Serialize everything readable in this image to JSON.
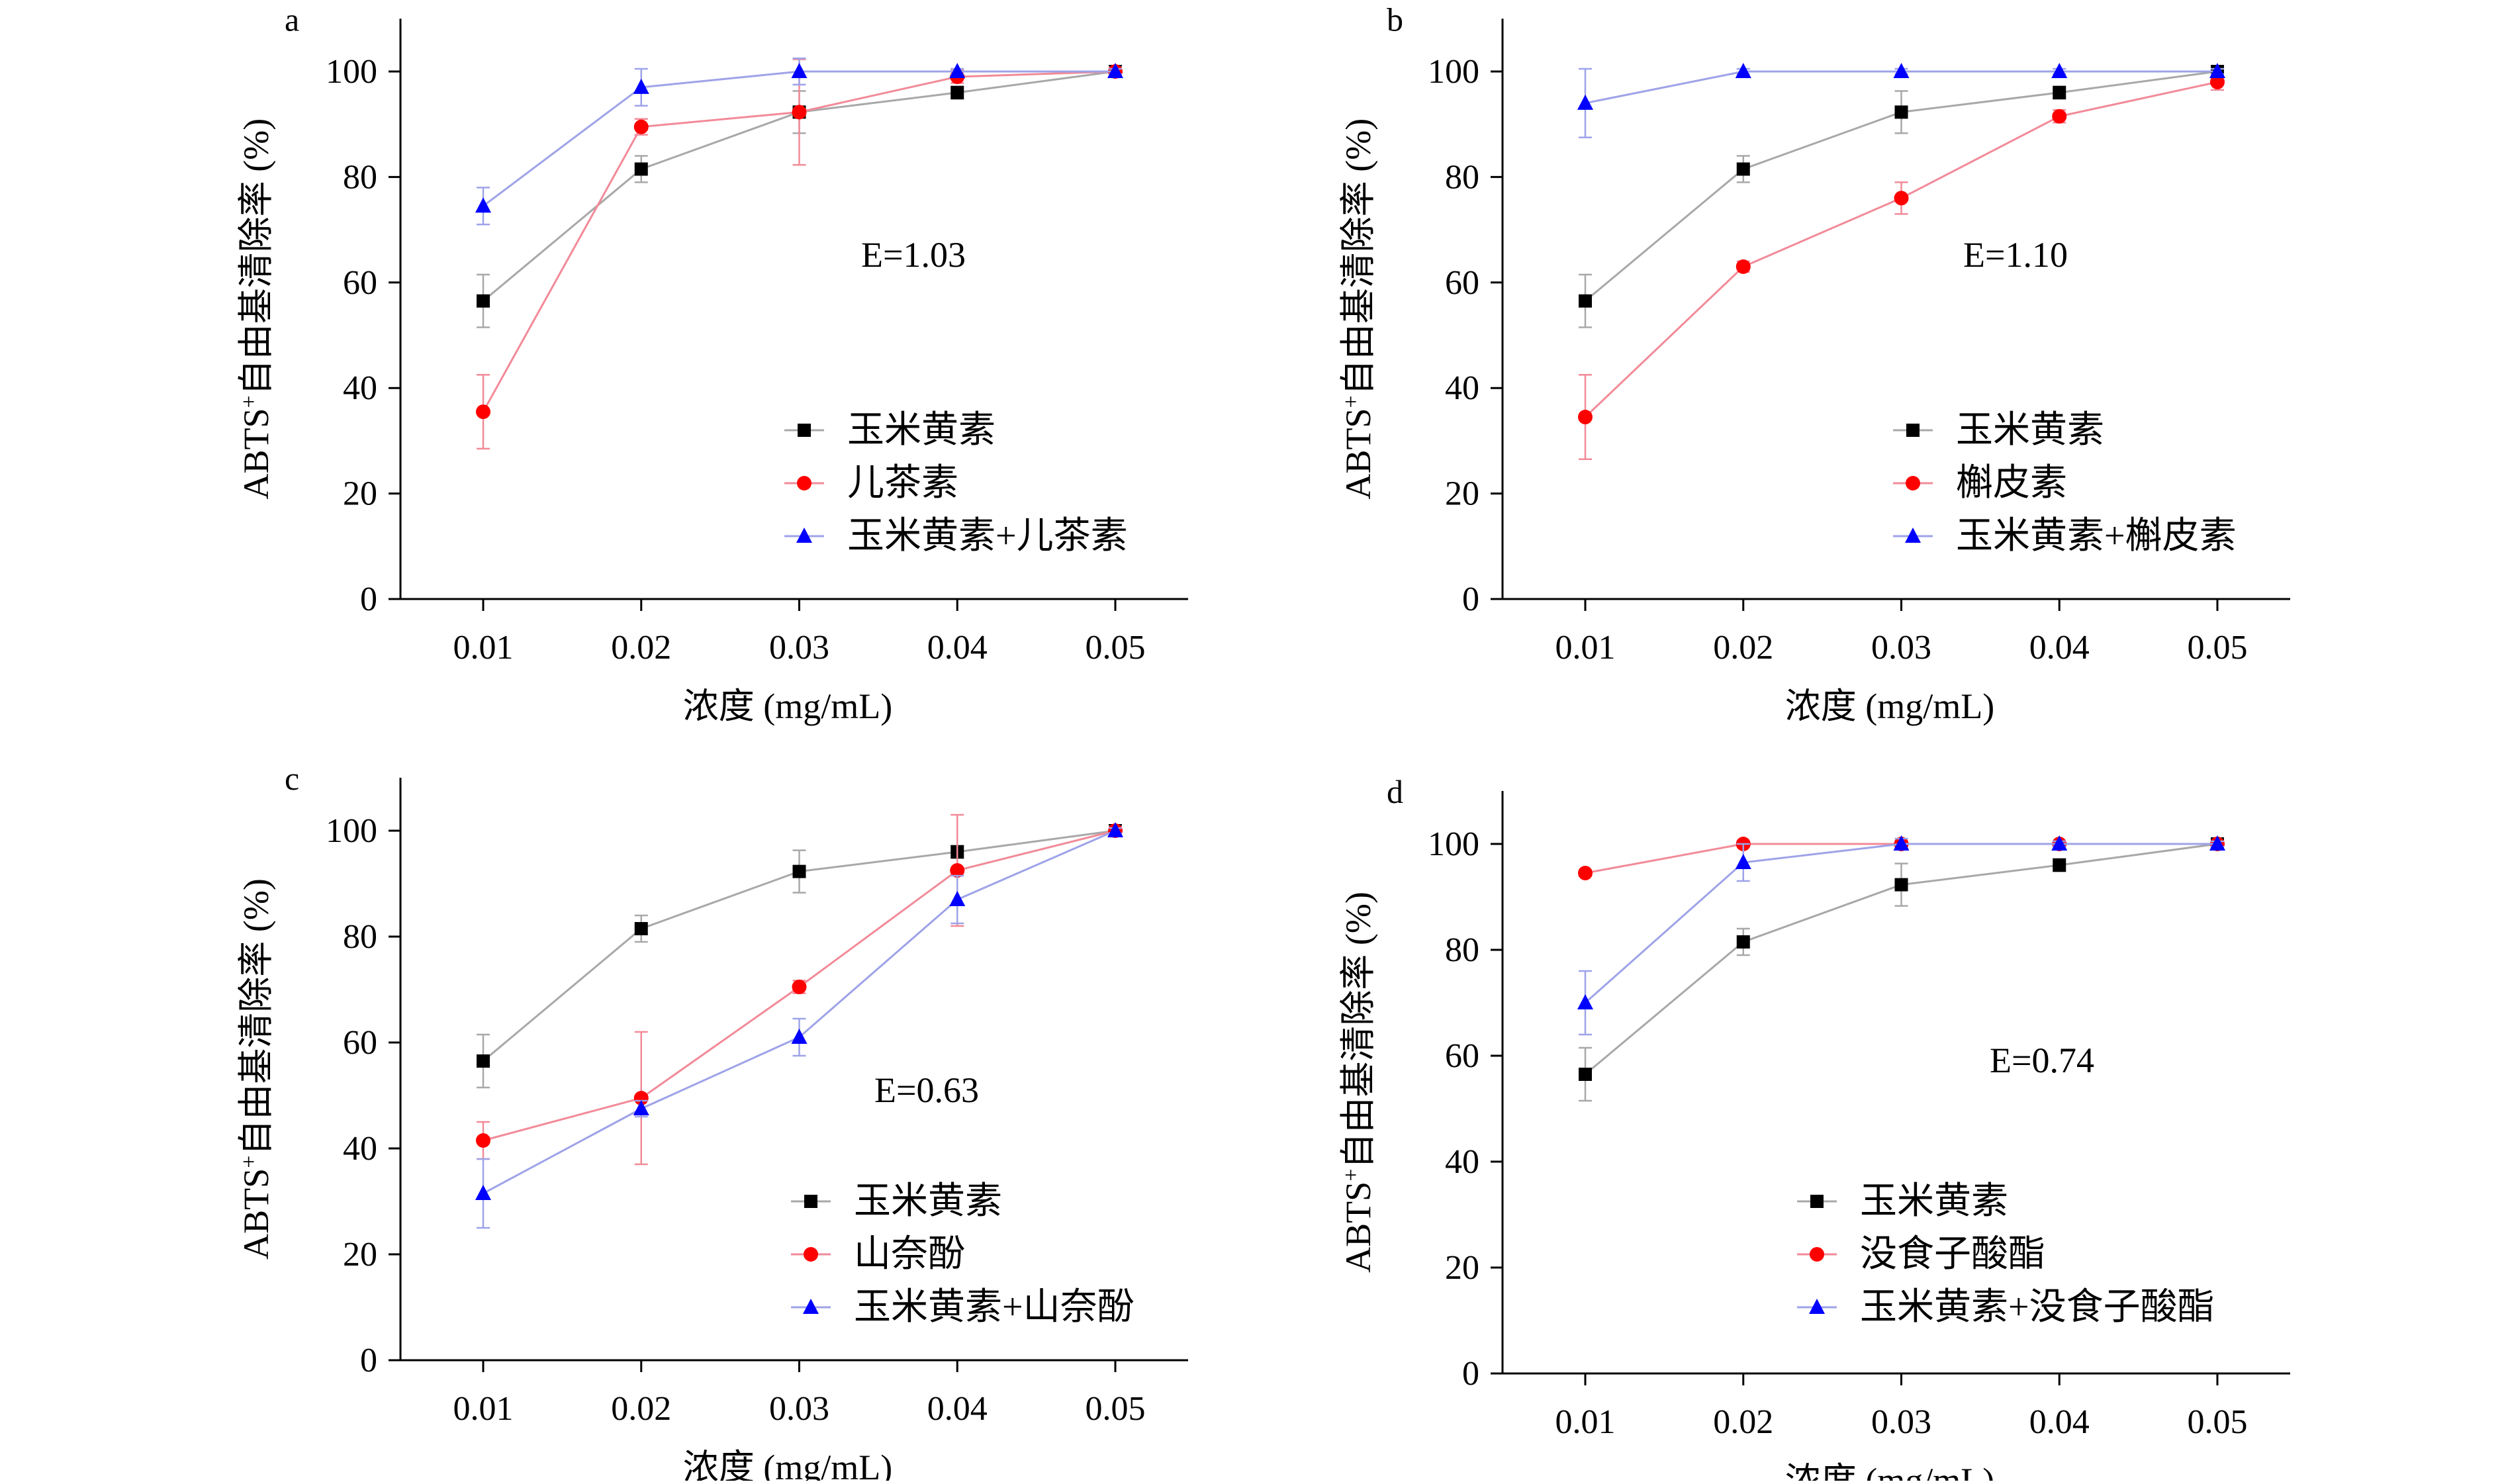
{
  "chart_data": [
    {
      "type": "line",
      "panel_label": "a",
      "x": [
        "0.01",
        "0.02",
        "0.03",
        "0.04",
        "0.05"
      ],
      "xlabel": "浓度 (mg/mL)",
      "ylabel_main": "ABTS",
      "ylabel_sup": "+",
      "ylabel_rest": "自由基清除率 (%)",
      "ylim": [
        0,
        110
      ],
      "yticks": [
        0,
        20,
        40,
        60,
        80,
        100
      ],
      "annotation": "E=1.03",
      "legend_position": "lower-right",
      "series": [
        {
          "name": "玉米黄素",
          "color": "#000000",
          "line": "#a8a8a8",
          "marker": "square",
          "values": [
            56.5,
            81.5,
            92.3,
            96.0,
            100.0
          ],
          "errors": [
            5,
            2.5,
            4,
            1.2,
            0.8
          ]
        },
        {
          "name": "儿茶素",
          "color": "#ff0000",
          "line": "#f28a98",
          "marker": "circle",
          "values": [
            35.5,
            89.5,
            92.3,
            99.0,
            100.0
          ],
          "errors": [
            7,
            1.5,
            10,
            1.2,
            0.8
          ]
        },
        {
          "name": "玉米黄素+儿茶素",
          "color": "#0000ff",
          "line": "#9ea3e8",
          "marker": "triangle",
          "values": [
            74.5,
            97.0,
            100.0,
            100.0,
            100.0
          ],
          "errors": [
            3.5,
            3.5,
            2.5,
            0.5,
            0.5
          ]
        }
      ]
    },
    {
      "type": "line",
      "panel_label": "b",
      "x": [
        "0.01",
        "0.02",
        "0.03",
        "0.04",
        "0.05"
      ],
      "xlabel": "浓度 (mg/mL)",
      "ylabel_main": "ABTS",
      "ylabel_sup": "+",
      "ylabel_rest": "自由基清除率 (%)",
      "ylim": [
        0,
        110
      ],
      "yticks": [
        0,
        20,
        40,
        60,
        80,
        100
      ],
      "annotation": "E=1.10",
      "legend_position": "lower-right",
      "series": [
        {
          "name": "玉米黄素",
          "color": "#000000",
          "line": "#a8a8a8",
          "marker": "square",
          "values": [
            56.5,
            81.5,
            92.3,
            96.0,
            100.0
          ],
          "errors": [
            5,
            2.5,
            4,
            1.2,
            0.8
          ]
        },
        {
          "name": "槲皮素",
          "color": "#ff0000",
          "line": "#f28a98",
          "marker": "circle",
          "values": [
            34.5,
            63.0,
            76.0,
            91.5,
            98.0
          ],
          "errors": [
            8,
            1,
            3,
            1.2,
            1.5
          ]
        },
        {
          "name": "玉米黄素+槲皮素",
          "color": "#0000ff",
          "line": "#9ea3e8",
          "marker": "triangle",
          "values": [
            94.0,
            100.0,
            100.0,
            100.0,
            100.0
          ],
          "errors": [
            6.5,
            0.5,
            0.5,
            0.5,
            0.5
          ]
        }
      ]
    },
    {
      "type": "line",
      "panel_label": "c",
      "x": [
        "0.01",
        "0.02",
        "0.03",
        "0.04",
        "0.05"
      ],
      "xlabel": "浓度 (mg/mL)",
      "ylabel_main": "ABTS",
      "ylabel_sup": "+",
      "ylabel_rest": "自由基清除率 (%)",
      "ylim": [
        0,
        110
      ],
      "yticks": [
        0,
        20,
        40,
        60,
        80,
        100
      ],
      "annotation": "E=0.63",
      "legend_position": "lower-right",
      "series": [
        {
          "name": "玉米黄素",
          "color": "#000000",
          "line": "#a8a8a8",
          "marker": "square",
          "values": [
            56.5,
            81.5,
            92.3,
            96.0,
            100.0
          ],
          "errors": [
            5,
            2.5,
            4,
            1.2,
            0.8
          ]
        },
        {
          "name": "山奈酚",
          "color": "#ff0000",
          "line": "#f28a98",
          "marker": "circle",
          "values": [
            41.5,
            49.5,
            70.5,
            92.5,
            100.0
          ],
          "errors": [
            3.5,
            12.5,
            1.2,
            10.5,
            0.8
          ]
        },
        {
          "name": "玉米黄素+山奈酚",
          "color": "#0000ff",
          "line": "#9ea3e8",
          "marker": "triangle",
          "values": [
            31.5,
            47.5,
            61.0,
            87.0,
            100.0
          ],
          "errors": [
            6.5,
            1.5,
            3.5,
            4.5,
            0.5
          ]
        }
      ]
    },
    {
      "type": "line",
      "panel_label": "d",
      "x": [
        "0.01",
        "0.02",
        "0.03",
        "0.04",
        "0.05"
      ],
      "xlabel": "浓度 (mg/mL)",
      "ylabel_main": "ABTS",
      "ylabel_sup": "+",
      "ylabel_rest": "自由基清除率 (%)",
      "ylim": [
        0,
        110
      ],
      "yticks": [
        0,
        20,
        40,
        60,
        80,
        100
      ],
      "annotation": "E=0.74",
      "legend_position": "lower-right",
      "series": [
        {
          "name": "玉米黄素",
          "color": "#000000",
          "line": "#a8a8a8",
          "marker": "square",
          "values": [
            56.5,
            81.5,
            92.3,
            96.0,
            100.0
          ],
          "errors": [
            5,
            2.5,
            4,
            1.2,
            0.8
          ]
        },
        {
          "name": "没食子酸酯",
          "color": "#ff0000",
          "line": "#f28a98",
          "marker": "circle",
          "values": [
            94.5,
            100.0,
            100.0,
            100.0,
            100.0
          ],
          "errors": [
            0.5,
            0.5,
            0.5,
            0.5,
            0.5
          ]
        },
        {
          "name": "玉米黄素+没食子酸酯",
          "color": "#0000ff",
          "line": "#9ea3e8",
          "marker": "triangle",
          "values": [
            70.0,
            96.5,
            100.0,
            100.0,
            100.0
          ],
          "errors": [
            6,
            3.5,
            1,
            0.5,
            0.5
          ]
        }
      ]
    }
  ]
}
